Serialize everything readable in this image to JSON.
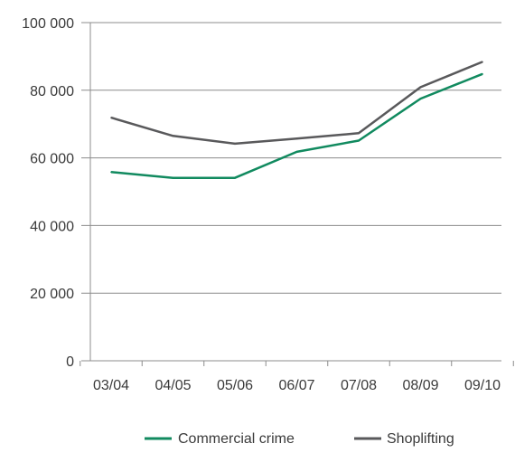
{
  "chart_data": {
    "type": "line",
    "categories": [
      "03/04",
      "04/05",
      "05/06",
      "06/07",
      "07/08",
      "08/09",
      "09/10"
    ],
    "series": [
      {
        "name": "Commercial crime",
        "color": "#118a5f",
        "values": [
          55800,
          54100,
          54100,
          61800,
          65100,
          77500,
          84800
        ]
      },
      {
        "name": "Shoplifting",
        "color": "#59595b",
        "values": [
          71900,
          66500,
          64200,
          65700,
          67300,
          80900,
          88400
        ]
      }
    ],
    "yticks": [
      {
        "value": 0,
        "label": "0"
      },
      {
        "value": 20000,
        "label": "20 000"
      },
      {
        "value": 40000,
        "label": "40 000"
      },
      {
        "value": 60000,
        "label": "60 000"
      },
      {
        "value": 80000,
        "label": "80 000"
      },
      {
        "value": 100000,
        "label": "100 000"
      }
    ],
    "ylim": [
      0,
      100000
    ],
    "grid": true,
    "legend_position": "bottom-center",
    "title": "",
    "xlabel": "",
    "ylabel": ""
  }
}
